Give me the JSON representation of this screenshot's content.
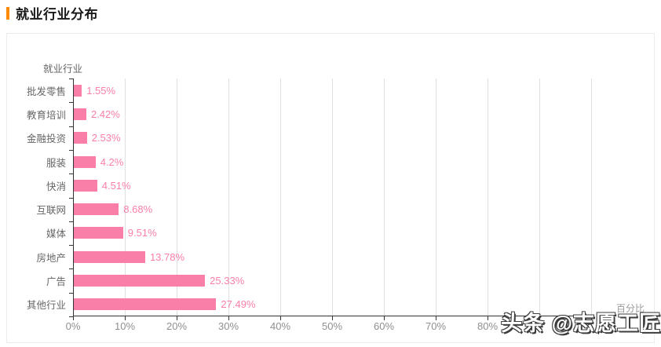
{
  "header": {
    "title": "就业行业分布"
  },
  "chart_data": {
    "type": "bar",
    "orientation": "horizontal",
    "y_axis_name": "就业行业",
    "x_axis_name": "百分比",
    "categories": [
      "批发零售",
      "教育培训",
      "金融投资",
      "服装",
      "快消",
      "互联网",
      "媒体",
      "房地产",
      "广告",
      "其他行业"
    ],
    "values": [
      1.55,
      2.42,
      2.53,
      4.2,
      4.51,
      8.68,
      9.51,
      13.78,
      25.33,
      27.49
    ],
    "value_labels": [
      "1.55%",
      "2.42%",
      "2.53%",
      "4.2%",
      "4.51%",
      "8.68%",
      "9.51%",
      "13.78%",
      "25.33%",
      "27.49%"
    ],
    "x_tick_labels": [
      "0%",
      "10%",
      "20%",
      "30%",
      "40%",
      "50%",
      "60%",
      "70%",
      "80%"
    ],
    "xlim": [
      0,
      100
    ],
    "x_tick_interval": 10,
    "grid": true,
    "legend_position": "none"
  },
  "watermark": {
    "text": "头条 @志愿工匠"
  },
  "colors": {
    "accent": "#ff8a00",
    "bar": "#fa7fa8",
    "value_label": "#fa7fa8",
    "axis_line": "#333333",
    "grid_line": "#e0e0e0"
  }
}
